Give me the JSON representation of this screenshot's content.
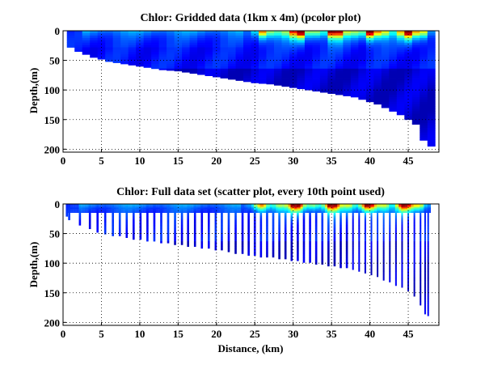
{
  "chart_data": [
    {
      "type": "heatmap",
      "title": "Chlor: Gridded data (1km x 4m) (pcolor plot)",
      "xlabel": "",
      "ylabel": "Depth,(m)",
      "xlim": [
        0,
        49
      ],
      "ylim": [
        0,
        205
      ],
      "y_reversed": true,
      "x_ticks": [
        0,
        5,
        10,
        15,
        20,
        25,
        30,
        35,
        40,
        45
      ],
      "y_ticks": [
        0,
        50,
        100,
        150,
        200
      ],
      "grid": true,
      "colormap": "jet",
      "cell_size_km": 1,
      "cell_size_m": 4,
      "bottom_profile": {
        "distance_km": [
          0.5,
          1,
          2,
          3,
          4,
          5,
          6,
          7,
          8,
          9,
          10,
          11,
          12,
          13,
          14,
          15,
          16,
          17,
          18,
          19,
          20,
          21,
          22,
          23,
          24,
          25,
          26,
          27,
          28,
          29,
          30,
          31,
          32,
          33,
          34,
          35,
          36,
          37,
          38,
          39,
          40,
          41,
          42,
          43,
          44,
          45,
          46,
          47,
          48
        ],
        "depth_m": [
          20,
          28,
          35,
          40,
          45,
          48,
          52,
          54,
          56,
          58,
          60,
          62,
          64,
          66,
          67,
          68,
          70,
          72,
          74,
          76,
          78,
          80,
          82,
          84,
          86,
          88,
          89,
          90,
          92,
          94,
          96,
          98,
          100,
          102,
          104,
          106,
          108,
          110,
          112,
          116,
          120,
          124,
          130,
          136,
          142,
          150,
          158,
          185,
          195
        ]
      }
    },
    {
      "type": "scatter",
      "title": "Chlor: Full data set (scatter plot, every 10th point used)",
      "xlabel": "Distance, (km)",
      "ylabel": "Depth,(m)",
      "xlim": [
        0,
        49
      ],
      "ylim": [
        0,
        205
      ],
      "y_reversed": true,
      "x_ticks": [
        0,
        5,
        10,
        15,
        20,
        25,
        30,
        35,
        40,
        45
      ],
      "y_ticks": [
        0,
        50,
        100,
        150,
        200
      ],
      "grid": true,
      "colormap": "jet",
      "cast_distances_km": [
        0.5,
        0.8,
        2.2,
        3.5,
        4.5,
        5.5,
        6.5,
        7.4,
        8.3,
        9.2,
        10.1,
        11,
        11.9,
        12.8,
        13.7,
        14.6,
        15.5,
        16.3,
        17.2,
        18.1,
        19,
        19.9,
        20.7,
        21.6,
        22.5,
        23.4,
        24.2,
        25,
        25.8,
        26.6,
        27.4,
        28.2,
        29,
        29.8,
        30.6,
        31.4,
        32.2,
        33,
        33.8,
        34.6,
        35.4,
        36.2,
        37,
        37.8,
        38.6,
        39.4,
        40.2,
        41,
        41.8,
        42.6,
        43.4,
        44.2,
        45,
        45.8,
        46.6,
        47.2,
        47.6
      ]
    }
  ]
}
